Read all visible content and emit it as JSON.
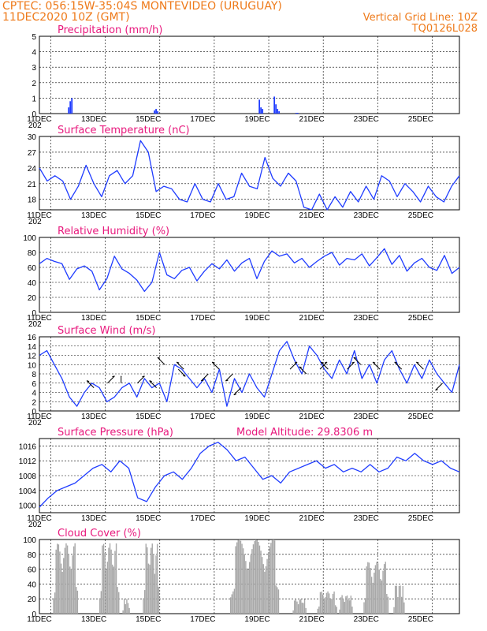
{
  "header": {
    "left_line1": "CPTEC:  056:15W-35:04S  MONTEVIDEO (URUGUAY)",
    "left_line2": "11DEC2020 10Z (GMT)",
    "right_line2": "Vertical Grid Line: 10Z",
    "right_line3": "TQ0126L028"
  },
  "colors": {
    "header": "#ee7a1a",
    "title": "#e8197d",
    "line": "#1f3cff",
    "bar_precip": "#1f3cff",
    "bar_cloud": "#a8a8a8",
    "arrow": "#000000"
  },
  "x_axis": {
    "labels": [
      "11DEC",
      "13DEC",
      "15DEC",
      "17DEC",
      "19DEC",
      "21DEC",
      "23DEC",
      "25DEC"
    ],
    "year_fragment": "202"
  },
  "chart_data": [
    {
      "type": "bar",
      "title": "Precipitation (mm/h)",
      "ylim": [
        0,
        5
      ],
      "yticks": [
        0,
        1,
        2,
        3,
        4,
        5
      ],
      "x_start_day": 11.42,
      "x_end_day": 26.42,
      "events": [
        {
          "day": 12.05,
          "values": [
            0.4,
            0.8,
            1.0
          ]
        },
        {
          "day": 15.2,
          "values": [
            0.2,
            0.3,
            0.15
          ]
        },
        {
          "day": 19.05,
          "values": [
            0.9,
            0.4,
            0.3
          ]
        },
        {
          "day": 19.6,
          "values": [
            1.1,
            0.6,
            0.3,
            0.15
          ]
        },
        {
          "day": 20.4,
          "values": [
            0.05,
            0.05
          ]
        }
      ]
    },
    {
      "type": "line",
      "title": "Surface Temperature (nC)",
      "ylim": [
        16,
        30
      ],
      "yticks": [
        18,
        21,
        24,
        27,
        30
      ],
      "values": [
        24,
        21.5,
        22.5,
        21.5,
        18,
        20.5,
        24.5,
        21,
        18.5,
        22.5,
        23.5,
        21,
        22.5,
        29.2,
        27,
        19.5,
        20.5,
        20,
        18,
        17.5,
        21,
        18,
        17.5,
        21,
        18,
        18.5,
        23,
        20.5,
        20,
        26,
        22,
        20.5,
        23,
        21.5,
        16.5,
        16,
        19,
        16,
        18.5,
        16.5,
        19.5,
        17.5,
        20.5,
        18,
        22.5,
        21.5,
        18.5,
        21,
        19.5,
        17.5,
        20.5,
        18.5,
        17.5,
        20.5,
        22.5
      ]
    },
    {
      "type": "line",
      "title": "Relative Humidity (%)",
      "ylim": [
        0,
        100
      ],
      "yticks": [
        0,
        20,
        40,
        60,
        80,
        100
      ],
      "values": [
        65,
        72,
        68,
        65,
        44,
        58,
        62,
        55,
        30,
        45,
        75,
        58,
        52,
        43,
        28,
        40,
        80,
        50,
        45,
        56,
        60,
        42,
        55,
        65,
        58,
        70,
        55,
        66,
        72,
        45,
        68,
        82,
        75,
        78,
        66,
        72,
        60,
        68,
        75,
        80,
        63,
        72,
        70,
        78,
        62,
        73,
        85,
        64,
        76,
        55,
        66,
        72,
        60,
        56,
        76,
        52,
        60
      ]
    },
    {
      "type": "line",
      "title": "Surface Wind (m/s)",
      "ylim": [
        0,
        16
      ],
      "yticks": [
        0,
        2,
        4,
        6,
        8,
        10,
        12,
        14,
        16
      ],
      "values": [
        12,
        13,
        10,
        7,
        3,
        1,
        4,
        6,
        5,
        2,
        3,
        5,
        6,
        3,
        7,
        5,
        6,
        2,
        10,
        9,
        7,
        5,
        7,
        4,
        9,
        1,
        7,
        4,
        8,
        5,
        3,
        8,
        13,
        15,
        11,
        8,
        14,
        12,
        9,
        7,
        11,
        8,
        13,
        7,
        10,
        6,
        11,
        13,
        9,
        6,
        10,
        7,
        11,
        8,
        6,
        4,
        10
      ]
    },
    {
      "type": "line",
      "title": "Surface Pressure (hPa)",
      "right_note": "Model Altitude: 29.8306 m",
      "ylim": [
        998,
        1018
      ],
      "yticks": [
        1000,
        1004,
        1008,
        1012,
        1016
      ],
      "values": [
        999.5,
        1002,
        1004,
        1005,
        1006,
        1008,
        1010,
        1011,
        1009,
        1012,
        1010,
        1002,
        1001,
        1005,
        1008,
        1009,
        1007,
        1010,
        1014,
        1016,
        1017,
        1015,
        1012,
        1013,
        1010,
        1007,
        1008,
        1006,
        1009,
        1010,
        1011,
        1012,
        1010,
        1011,
        1009,
        1010,
        1009,
        1011,
        1009,
        1010,
        1013,
        1012,
        1014,
        1012,
        1011,
        1012,
        1010,
        1009
      ]
    },
    {
      "type": "bar",
      "title": "Cloud Cover (%)",
      "ylim": [
        0,
        100
      ],
      "yticks": [
        0,
        20,
        40,
        60,
        80,
        100
      ],
      "segments": [
        {
          "from": 11.5,
          "to": 12.4,
          "peak": 95
        },
        {
          "from": 13.2,
          "to": 13.9,
          "peak": 95
        },
        {
          "from": 14.05,
          "to": 14.3,
          "peak": 20
        },
        {
          "from": 14.8,
          "to": 15.4,
          "peak": 95
        },
        {
          "from": 18.0,
          "to": 19.8,
          "peak": 100
        },
        {
          "from": 20.3,
          "to": 20.8,
          "peak": 20
        },
        {
          "from": 21.2,
          "to": 21.9,
          "peak": 30
        },
        {
          "from": 22.0,
          "to": 22.5,
          "peak": 25
        },
        {
          "from": 22.9,
          "to": 23.8,
          "peak": 70
        },
        {
          "from": 24.0,
          "to": 24.4,
          "peak": 40
        }
      ]
    }
  ]
}
